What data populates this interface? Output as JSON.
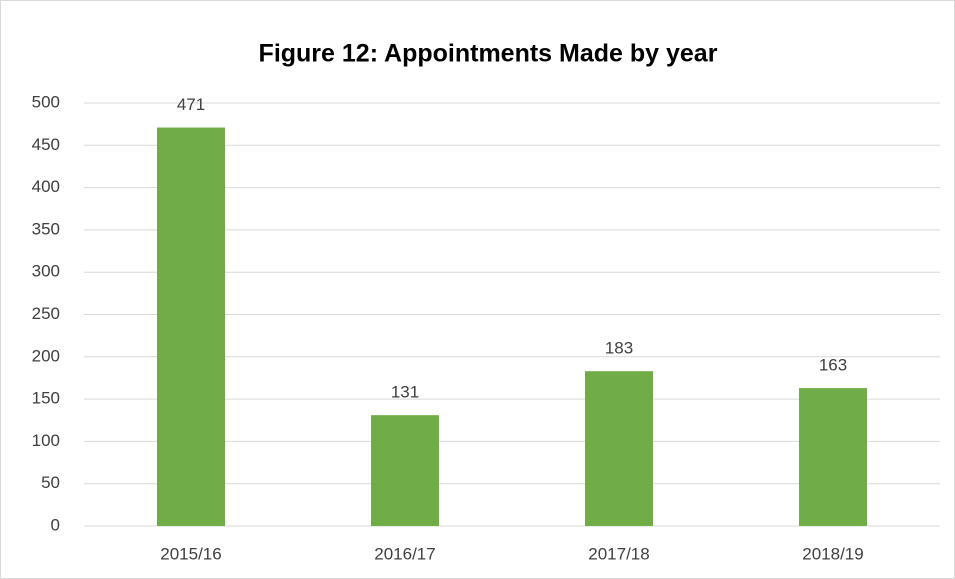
{
  "chart_data": {
    "type": "bar",
    "title": "Figure 12: Appointments Made by year",
    "categories": [
      "2015/16",
      "2016/17",
      "2017/18",
      "2018/19"
    ],
    "values": [
      471,
      131,
      183,
      163
    ],
    "color": "#70ad47",
    "ylim": [
      0,
      500
    ],
    "yticks": [
      0,
      50,
      100,
      150,
      200,
      250,
      300,
      350,
      400,
      450,
      500
    ],
    "grid": true,
    "show_value_labels": true
  }
}
